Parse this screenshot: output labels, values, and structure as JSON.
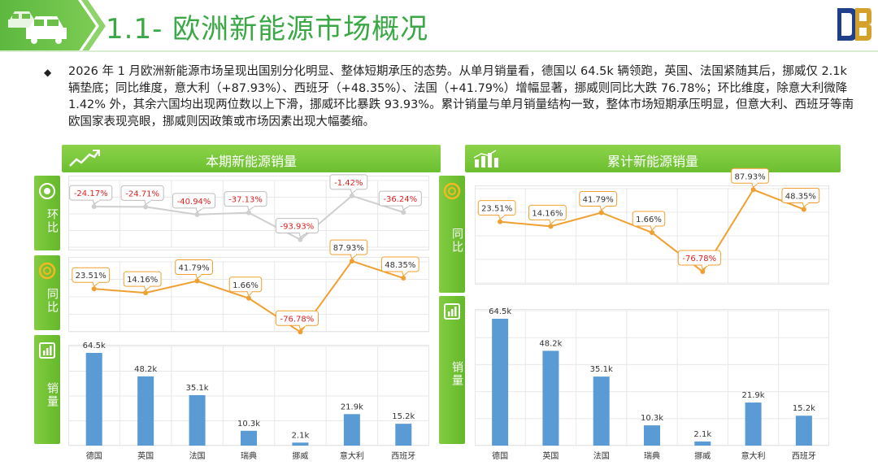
{
  "header": {
    "title": "1.1- 欧洲新能源市场概况",
    "accent_color": "#3aa845",
    "band_color": "#6cc04a"
  },
  "summary": {
    "bullet": "◆",
    "text": "2026 年 1 月欧洲新能源市场呈现出国别分化明显、整体短期承压的态势。从单月销量看，德国以 64.5k 辆领跑，英国、法国紧随其后，挪威仅 2.1k 辆垫底；同比维度，意大利（+87.93%）、西班牙（+48.35%）、法国（+41.79%）增幅显著，挪威则同比大跌 76.78%；环比维度，除意大利微降 1.42% 外，其余六国均出现两位数以上下滑，挪威环比暴跌 93.93%。累计销量与单月销量结构一致，整体市场短期承压明显，但意大利、西班牙等南欧国家表现亮眼，挪威则因政策或市场因素出现大幅萎缩。"
  },
  "left_panel": {
    "title": "本期新能源销量",
    "icon": "trend-line-icon",
    "tabs": {
      "mom": "环比",
      "yoy": "同比",
      "sales": "销量"
    }
  },
  "right_panel": {
    "title": "累计新能源销量",
    "icon": "bar-chart-icon",
    "tabs": {
      "yoy": "同比",
      "sales": "销量"
    }
  },
  "chart_data": [
    {
      "id": "monthly-mom",
      "type": "line",
      "categories": [
        "德国",
        "英国",
        "法国",
        "瑞典",
        "挪威",
        "意大利",
        "西班牙"
      ],
      "values": [
        -24.17,
        -24.71,
        -40.94,
        -37.13,
        -93.93,
        -1.42,
        -36.24
      ],
      "labels": [
        "-24.17%",
        "-24.71%",
        "-40.94%",
        "-37.13%",
        "-93.93%",
        "-1.42%",
        "-36.24%"
      ],
      "color": "#cfcfcf",
      "label_color": "#e02020",
      "grid": true
    },
    {
      "id": "monthly-yoy",
      "type": "line",
      "categories": [
        "德国",
        "英国",
        "法国",
        "瑞典",
        "挪威",
        "意大利",
        "西班牙"
      ],
      "values": [
        23.51,
        14.16,
        41.79,
        1.66,
        -76.78,
        87.93,
        48.35
      ],
      "labels": [
        "23.51%",
        "14.16%",
        "41.79%",
        "1.66%",
        "-76.78%",
        "87.93%",
        "48.35%"
      ],
      "color": "#f0a030",
      "label_color": "#333333",
      "negative_label_color": "#e02020",
      "grid": true
    },
    {
      "id": "monthly-sales",
      "type": "bar",
      "categories": [
        "德国",
        "英国",
        "法国",
        "瑞典",
        "挪威",
        "意大利",
        "西班牙"
      ],
      "values": [
        64.5,
        48.2,
        35.1,
        10.3,
        2.1,
        21.9,
        15.2
      ],
      "labels": [
        "64.5k",
        "48.2k",
        "35.1k",
        "10.3k",
        "2.1k",
        "21.9k",
        "15.2k"
      ],
      "color": "#5b9bd5",
      "grid": true
    },
    {
      "id": "cumulative-yoy",
      "type": "line",
      "categories": [
        "德国",
        "英国",
        "法国",
        "瑞典",
        "挪威",
        "意大利",
        "西班牙"
      ],
      "values": [
        23.51,
        14.16,
        41.79,
        1.66,
        -76.78,
        87.93,
        48.35
      ],
      "labels": [
        "23.51%",
        "14.16%",
        "41.79%",
        "1.66%",
        "-76.78%",
        "87.93%",
        "48.35%"
      ],
      "color": "#f0a030",
      "label_color": "#333333",
      "negative_label_color": "#e02020",
      "grid": true
    },
    {
      "id": "cumulative-sales",
      "type": "bar",
      "categories": [
        "德国",
        "英国",
        "法国",
        "瑞典",
        "挪威",
        "意大利",
        "西班牙"
      ],
      "values": [
        64.5,
        48.2,
        35.1,
        10.3,
        2.1,
        21.9,
        15.2
      ],
      "labels": [
        "64.5k",
        "48.2k",
        "35.1k",
        "10.3k",
        "2.1k",
        "21.9k",
        "15.2k"
      ],
      "color": "#5b9bd5",
      "grid": true
    }
  ]
}
